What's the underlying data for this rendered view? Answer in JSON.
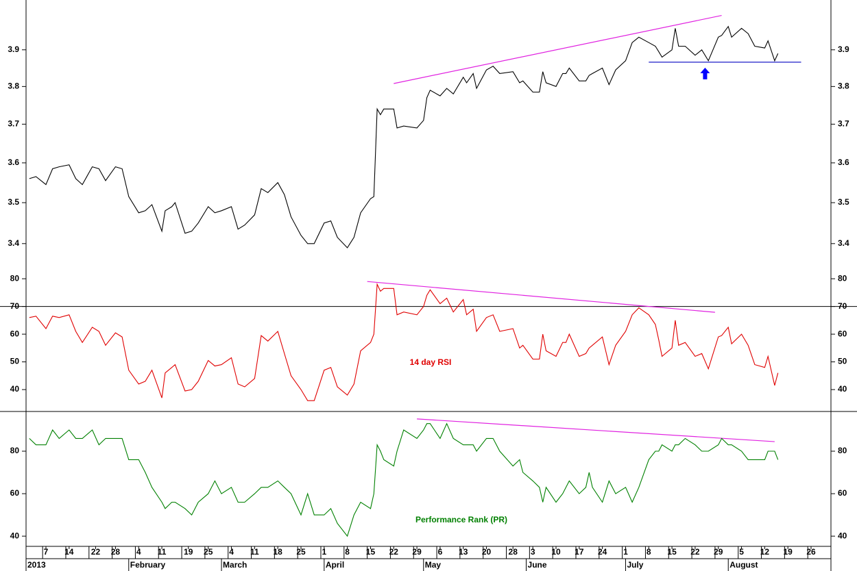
{
  "chart_data": {
    "type": "line",
    "x": [
      "2013-01-02",
      "2013-01-04",
      "2013-01-07",
      "2013-01-09",
      "2013-01-11",
      "2013-01-14",
      "2013-01-16",
      "2013-01-18",
      "2013-01-21",
      "2013-01-23",
      "2013-01-25",
      "2013-01-28",
      "2013-01-30",
      "2013-02-01",
      "2013-02-04",
      "2013-02-06",
      "2013-02-08",
      "2013-02-11",
      "2013-02-12",
      "2013-02-14",
      "2013-02-15",
      "2013-02-18",
      "2013-02-20",
      "2013-02-22",
      "2013-02-25",
      "2013-02-27",
      "2013-03-01",
      "2013-03-04",
      "2013-03-06",
      "2013-03-08",
      "2013-03-11",
      "2013-03-13",
      "2013-03-15",
      "2013-03-18",
      "2013-03-20",
      "2013-03-22",
      "2013-03-25",
      "2013-03-27",
      "2013-03-29",
      "2013-04-01",
      "2013-04-03",
      "2013-04-05",
      "2013-04-08",
      "2013-04-10",
      "2013-04-12",
      "2013-04-15",
      "2013-04-16",
      "2013-04-17",
      "2013-04-18",
      "2013-04-19",
      "2013-04-22",
      "2013-04-23",
      "2013-04-25",
      "2013-04-29",
      "2013-05-01",
      "2013-05-02",
      "2013-05-03",
      "2013-05-06",
      "2013-05-08",
      "2013-05-10",
      "2013-05-13",
      "2013-05-14",
      "2013-05-16",
      "2013-05-17",
      "2013-05-20",
      "2013-05-22",
      "2013-05-24",
      "2013-05-28",
      "2013-05-30",
      "2013-05-31",
      "2013-06-03",
      "2013-06-05",
      "2013-06-06",
      "2013-06-07",
      "2013-06-10",
      "2013-06-12",
      "2013-06-13",
      "2013-06-14",
      "2013-06-17",
      "2013-06-19",
      "2013-06-20",
      "2013-06-21",
      "2013-06-24",
      "2013-06-26",
      "2013-06-28",
      "2013-07-01",
      "2013-07-03",
      "2013-07-05",
      "2013-07-08",
      "2013-07-10",
      "2013-07-11",
      "2013-07-12",
      "2013-07-15",
      "2013-07-16",
      "2013-07-17",
      "2013-07-19",
      "2013-07-22",
      "2013-07-24",
      "2013-07-26",
      "2013-07-29",
      "2013-07-30",
      "2013-08-01",
      "2013-08-02",
      "2013-08-05",
      "2013-08-07",
      "2013-08-09",
      "2013-08-12",
      "2013-08-13",
      "2013-08-15",
      "2013-08-16"
    ],
    "xlim": [
      "2013-01-01",
      "2013-09-01"
    ],
    "xticks": [
      {
        "value": "2013-01-07",
        "label": "7"
      },
      {
        "value": "2013-01-14",
        "label": "14"
      },
      {
        "value": "2013-01-22",
        "label": "22"
      },
      {
        "value": "2013-01-28",
        "label": "28"
      },
      {
        "value": "2013-02-04",
        "label": "4"
      },
      {
        "value": "2013-02-11",
        "label": "11"
      },
      {
        "value": "2013-02-19",
        "label": "19"
      },
      {
        "value": "2013-02-25",
        "label": "25"
      },
      {
        "value": "2013-03-04",
        "label": "4"
      },
      {
        "value": "2013-03-11",
        "label": "11"
      },
      {
        "value": "2013-03-18",
        "label": "18"
      },
      {
        "value": "2013-03-25",
        "label": "25"
      },
      {
        "value": "2013-04-01",
        "label": "1"
      },
      {
        "value": "2013-04-08",
        "label": "8"
      },
      {
        "value": "2013-04-15",
        "label": "15"
      },
      {
        "value": "2013-04-22",
        "label": "22"
      },
      {
        "value": "2013-04-29",
        "label": "29"
      },
      {
        "value": "2013-05-06",
        "label": "6"
      },
      {
        "value": "2013-05-13",
        "label": "13"
      },
      {
        "value": "2013-05-20",
        "label": "20"
      },
      {
        "value": "2013-05-28",
        "label": "28"
      },
      {
        "value": "2013-06-03",
        "label": "3"
      },
      {
        "value": "2013-06-10",
        "label": "10"
      },
      {
        "value": "2013-06-17",
        "label": "17"
      },
      {
        "value": "2013-06-24",
        "label": "24"
      },
      {
        "value": "2013-07-01",
        "label": "1"
      },
      {
        "value": "2013-07-08",
        "label": "8"
      },
      {
        "value": "2013-07-15",
        "label": "15"
      },
      {
        "value": "2013-07-22",
        "label": "22"
      },
      {
        "value": "2013-07-29",
        "label": "29"
      },
      {
        "value": "2013-08-05",
        "label": "5"
      },
      {
        "value": "2013-08-12",
        "label": "12"
      },
      {
        "value": "2013-08-19",
        "label": "19"
      },
      {
        "value": "2013-08-26",
        "label": "26"
      }
    ],
    "month_labels": [
      {
        "value": "2013-01-01",
        "label": "2013"
      },
      {
        "value": "2013-02-01",
        "label": "February"
      },
      {
        "value": "2013-03-01",
        "label": "March"
      },
      {
        "value": "2013-04-01",
        "label": "April"
      },
      {
        "value": "2013-05-01",
        "label": "May"
      },
      {
        "value": "2013-06-01",
        "label": "June"
      },
      {
        "value": "2013-07-01",
        "label": "July"
      },
      {
        "value": "2013-08-01",
        "label": "August"
      }
    ],
    "panels": [
      {
        "ylim": [
          3.336,
          4.04
        ],
        "log": true,
        "yticks": [
          3.4,
          3.5,
          3.6,
          3.7,
          3.8,
          3.9
        ],
        "series": [
          {
            "color": "#000000",
            "values": [
              3.56,
              3.565,
              3.545,
              3.585,
              3.59,
              3.595,
              3.56,
              3.545,
              3.59,
              3.585,
              3.555,
              3.59,
              3.585,
              3.515,
              3.475,
              3.48,
              3.495,
              3.43,
              3.48,
              3.49,
              3.5,
              3.425,
              3.43,
              3.45,
              3.49,
              3.475,
              3.48,
              3.49,
              3.435,
              3.445,
              3.47,
              3.535,
              3.525,
              3.55,
              3.52,
              3.465,
              3.42,
              3.4,
              3.4,
              3.45,
              3.455,
              3.415,
              3.39,
              3.415,
              3.475,
              3.51,
              3.515,
              3.74,
              3.725,
              3.74,
              3.74,
              3.69,
              3.695,
              3.69,
              3.71,
              3.77,
              3.79,
              3.775,
              3.795,
              3.78,
              3.825,
              3.81,
              3.835,
              3.795,
              3.845,
              3.855,
              3.835,
              3.84,
              3.81,
              3.815,
              3.785,
              3.785,
              3.84,
              3.81,
              3.8,
              3.835,
              3.835,
              3.85,
              3.815,
              3.815,
              3.83,
              3.835,
              3.85,
              3.805,
              3.845,
              3.87,
              3.92,
              3.935,
              3.92,
              3.91,
              3.895,
              3.88,
              3.9,
              3.96,
              3.91,
              3.91,
              3.885,
              3.9,
              3.87,
              3.935,
              3.94,
              3.965,
              3.935,
              3.96,
              3.945,
              3.91,
              3.905,
              3.925,
              3.87,
              3.89
            ]
          }
        ],
        "trendlines": [
          {
            "x": [
              "2013-04-22",
              "2013-07-30"
            ],
            "values": [
              3.808,
              3.996
            ],
            "color": "#e020e0"
          },
          {
            "x": [
              "2013-07-08",
              "2013-08-23"
            ],
            "values": [
              3.866,
              3.866
            ],
            "color": "#0000c0"
          }
        ],
        "arrows": [
          {
            "x": "2013-07-25",
            "value": 3.866,
            "color": "#0000ff"
          }
        ]
      },
      {
        "ylim": [
          32.1,
          83
        ],
        "yticks": [
          40,
          50,
          60,
          70,
          80
        ],
        "hlines": [
          {
            "value": 70,
            "color": "#000000"
          }
        ],
        "series": [
          {
            "name": "14 day RSI",
            "color": "#e00000",
            "values": [
              66,
              66.5,
              62,
              66.5,
              66,
              67,
              61,
              57,
              62.5,
              61,
              56,
              60.5,
              59,
              47,
              42,
              43,
              47,
              37,
              46,
              48,
              49,
              39.5,
              40,
              43,
              50.5,
              48.5,
              49,
              51.5,
              42,
              41,
              44,
              59.5,
              57.5,
              61,
              53,
              45,
              40,
              36,
              36,
              47,
              48,
              41,
              38,
              42,
              54,
              57,
              60,
              78,
              75.5,
              76.5,
              76.5,
              67,
              68,
              67,
              70,
              74,
              76,
              71,
              73,
              68,
              72.5,
              67,
              69,
              61,
              66,
              67,
              61,
              62,
              55,
              56,
              51,
              51,
              60,
              54,
              52,
              57,
              57,
              60,
              52,
              53,
              55,
              56,
              59,
              49,
              56,
              61,
              67,
              69.5,
              67,
              63.5,
              58,
              52,
              55,
              65,
              56,
              57,
              52,
              53,
              47.5,
              59,
              59.5,
              62.5,
              56.5,
              60,
              56,
              49,
              48,
              52,
              41.5,
              46
            ]
          }
        ],
        "trendlines": [
          {
            "x": [
              "2013-04-14",
              "2013-07-28"
            ],
            "values": [
              79,
              67.9
            ],
            "color": "#e020e0"
          }
        ]
      },
      {
        "ylim": [
          35.2,
          98.7
        ],
        "yticks": [
          40,
          60,
          80
        ],
        "series": [
          {
            "name": "Performance Rank (PR)",
            "color": "#008000",
            "values": [
              86,
              83,
              83,
              90,
              86,
              90,
              86,
              86,
              90,
              83,
              86,
              86,
              86,
              76,
              76,
              70,
              63,
              56,
              53,
              56,
              56,
              53,
              50,
              56,
              60,
              66,
              60,
              63,
              56,
              56,
              60,
              63,
              63,
              66,
              63,
              60,
              50,
              60,
              50,
              50,
              53,
              46,
              40,
              50,
              56,
              53,
              60,
              83,
              80,
              76,
              73,
              80,
              90,
              86,
              90,
              93,
              93,
              86,
              93,
              86,
              83,
              83,
              83,
              80,
              86,
              86,
              80,
              73,
              76,
              70,
              66,
              63,
              56,
              63,
              56,
              60,
              63,
              66,
              60,
              63,
              70,
              63,
              56,
              66,
              60,
              63,
              56,
              63,
              76,
              80,
              80,
              83,
              80,
              83,
              83,
              86,
              83,
              80,
              80,
              83,
              86,
              83,
              83,
              80,
              76,
              76,
              76,
              80,
              80,
              76
            ]
          }
        ],
        "trendlines": [
          {
            "x": [
              "2013-04-29",
              "2013-08-15"
            ],
            "values": [
              95.2,
              84.5
            ],
            "color": "#e020e0"
          }
        ]
      }
    ]
  }
}
